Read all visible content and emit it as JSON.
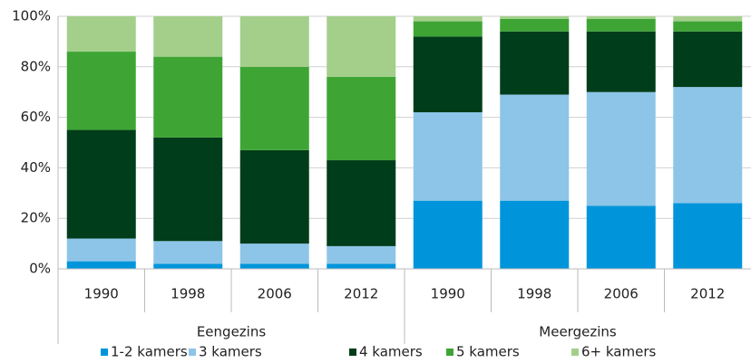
{
  "chart_data": {
    "type": "stacked-bar",
    "categories": [
      "1990",
      "1998",
      "2006",
      "2012",
      "1990",
      "1998",
      "2006",
      "2012"
    ],
    "groups": [
      "Eengezins",
      "Meergezins"
    ],
    "series": [
      {
        "name": "1-2 kamers",
        "color": "#0095db",
        "values": [
          3,
          2,
          2,
          2,
          27,
          27,
          25,
          26
        ]
      },
      {
        "name": "3 kamers",
        "color": "#8dc5e8",
        "values": [
          9,
          9,
          8,
          7,
          35,
          42,
          45,
          46
        ]
      },
      {
        "name": "4 kamers",
        "color": "#003d1a",
        "values": [
          43,
          41,
          37,
          34,
          30,
          25,
          24,
          22
        ]
      },
      {
        "name": "5 kamers",
        "color": "#3ea535",
        "values": [
          31,
          32,
          33,
          33,
          6,
          5,
          5,
          4
        ]
      },
      {
        "name": "6+ kamers",
        "color": "#a3cf8b",
        "values": [
          14,
          16,
          20,
          24,
          2,
          1,
          1,
          2
        ]
      }
    ],
    "ylim": [
      0,
      100
    ],
    "yticks": [
      {
        "value": 0,
        "label": "0%"
      },
      {
        "value": 20,
        "label": "20%"
      },
      {
        "value": 40,
        "label": "40%"
      },
      {
        "value": 60,
        "label": "60%"
      },
      {
        "value": 80,
        "label": "80%"
      },
      {
        "value": 100,
        "label": "100%"
      }
    ],
    "grid": true
  }
}
